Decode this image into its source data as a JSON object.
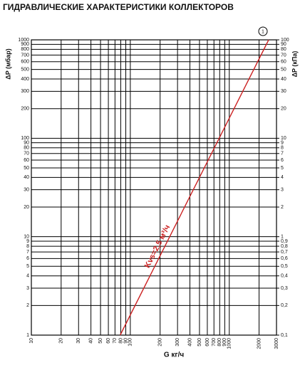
{
  "chart_data": {
    "type": "line",
    "title": "ГИДРАВЛИЧЕСКИЕ ХАРАКТЕРИСТИКИ КОЛЛЕКТОРОВ",
    "ylabel": "ΔP (мбар)",
    "y2label": "ΔP (кПа)",
    "xlabel": "G кг/ч",
    "log_x": true,
    "log_y": true,
    "grid": true,
    "xlim": [
      10,
      3000
    ],
    "xticks": [
      10,
      20,
      30,
      40,
      50,
      60,
      70,
      80,
      90,
      100,
      200,
      300,
      400,
      500,
      600,
      700,
      800,
      900,
      1000,
      2000,
      3000
    ],
    "ylim": [
      1,
      1000
    ],
    "yticks": [
      1,
      2,
      3,
      4,
      5,
      6,
      7,
      8,
      9,
      10,
      20,
      30,
      40,
      50,
      60,
      70,
      80,
      90,
      100,
      200,
      300,
      400,
      500,
      600,
      700,
      800,
      900,
      1000
    ],
    "y2lim": [
      0.1,
      100
    ],
    "y2ticks": [
      {
        "value": 0.1,
        "label": "0,1"
      },
      {
        "value": 0.2,
        "label": "0,2"
      },
      {
        "value": 0.3,
        "label": "0,3"
      },
      {
        "value": 0.4,
        "label": "0,4"
      },
      {
        "value": 0.5,
        "label": "0,5"
      },
      {
        "value": 0.6,
        "label": "0,6"
      },
      {
        "value": 0.7,
        "label": "0,7"
      },
      {
        "value": 0.8,
        "label": "0,8"
      },
      {
        "value": 0.9,
        "label": "0,9"
      },
      1,
      2,
      3,
      4,
      5,
      6,
      7,
      8,
      9,
      10,
      20,
      30,
      40,
      50,
      60,
      70,
      80,
      90,
      100
    ],
    "series": [
      {
        "name": "Kvs=2,5 м³/ч",
        "label": "1",
        "color": "#cc2222",
        "x": [
          79,
          2500
        ],
        "values": [
          1,
          1000
        ]
      }
    ]
  }
}
